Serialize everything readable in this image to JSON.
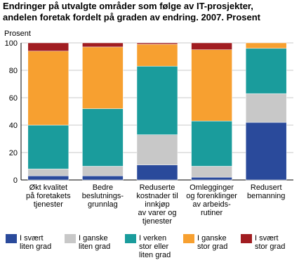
{
  "chart_data": {
    "type": "stacked_bar",
    "title": "Endringer på utvalgte områder som følge av IT-prosjekter, andelen foretak fordelt på graden av endring. 2007. Prosent",
    "y_label": "Prosent",
    "categories": [
      "Økt kvalitet\npå foretakets\ntjenester",
      "Bedre\nbeslutnings-\ngrunnlag",
      "Reduserte\nkostnader til\ninnkjøp\nav varer og\ntjenester",
      "Omlegginger\nog forenklinger\nav arbeids-\nrutiner",
      "Redusert\nbemanning"
    ],
    "series": [
      {
        "name": "I svært\nliten grad",
        "color": "#2a4a9b",
        "values": [
          3,
          3,
          11,
          2,
          42
        ]
      },
      {
        "name": "I ganske\nliten grad",
        "color": "#c8c8c8",
        "values": [
          5,
          7,
          22,
          8,
          21
        ]
      },
      {
        "name": "I verken\nstor eller\nliten grad",
        "color": "#1a9c9c",
        "values": [
          32,
          42,
          50,
          33,
          33
        ]
      },
      {
        "name": "I ganske\nstor grad",
        "color": "#f7a030",
        "values": [
          54,
          45,
          16,
          52,
          4
        ]
      },
      {
        "name": "I svært\nstor grad",
        "color": "#a11d21",
        "values": [
          6,
          3,
          1,
          5,
          0
        ]
      }
    ],
    "ylim": [
      0,
      100
    ],
    "yticks": [
      0,
      20,
      40,
      60,
      80,
      100
    ],
    "grid": true
  }
}
